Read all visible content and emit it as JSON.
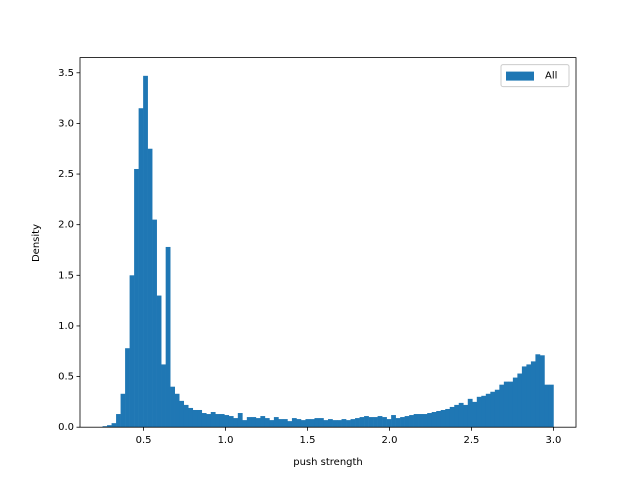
{
  "chart_data": {
    "type": "histogram",
    "xlabel": "push strength",
    "ylabel": "Density",
    "bins": [
      0.25,
      0.2775,
      0.305,
      0.3325,
      0.36,
      0.3875,
      0.415,
      0.4425,
      0.47,
      0.4975,
      0.525,
      0.5525,
      0.58,
      0.6075,
      0.635,
      0.6625,
      0.69,
      0.7175,
      0.745,
      0.7725,
      0.8,
      0.8275,
      0.855,
      0.8825,
      0.91,
      0.9375,
      0.965,
      0.9925,
      1.02,
      1.0475,
      1.075,
      1.1025,
      1.13,
      1.1575,
      1.185,
      1.2125,
      1.24,
      1.2675,
      1.295,
      1.3225,
      1.35,
      1.3775,
      1.405,
      1.4325,
      1.46,
      1.4875,
      1.515,
      1.5425,
      1.57,
      1.5975,
      1.625,
      1.6525,
      1.68,
      1.7075,
      1.735,
      1.7625,
      1.79,
      1.8175,
      1.845,
      1.8725,
      1.9,
      1.9275,
      1.955,
      1.9825,
      2.01,
      2.0375,
      2.065,
      2.0925,
      2.12,
      2.1475,
      2.175,
      2.2025,
      2.23,
      2.2575,
      2.285,
      2.3125,
      2.34,
      2.3675,
      2.395,
      2.4225,
      2.45,
      2.4775,
      2.505,
      2.5325,
      2.56,
      2.5875,
      2.615,
      2.6425,
      2.67,
      2.6975,
      2.725,
      2.7525,
      2.78,
      2.8075,
      2.835,
      2.8625,
      2.89,
      2.9175,
      2.945,
      2.9725,
      3.0
    ],
    "series": [
      {
        "name": "All",
        "color": "#1f77b4",
        "values": [
          0.01,
          0.02,
          0.04,
          0.13,
          0.33,
          0.78,
          1.5,
          2.55,
          3.15,
          3.47,
          2.75,
          2.05,
          1.3,
          0.62,
          1.78,
          0.4,
          0.33,
          0.26,
          0.22,
          0.19,
          0.17,
          0.17,
          0.14,
          0.13,
          0.15,
          0.13,
          0.13,
          0.12,
          0.11,
          0.09,
          0.14,
          0.07,
          0.1,
          0.1,
          0.09,
          0.11,
          0.09,
          0.07,
          0.1,
          0.08,
          0.08,
          0.06,
          0.09,
          0.08,
          0.07,
          0.08,
          0.08,
          0.09,
          0.09,
          0.07,
          0.08,
          0.07,
          0.07,
          0.08,
          0.07,
          0.08,
          0.09,
          0.1,
          0.11,
          0.1,
          0.1,
          0.11,
          0.1,
          0.08,
          0.12,
          0.09,
          0.1,
          0.11,
          0.12,
          0.13,
          0.13,
          0.13,
          0.14,
          0.15,
          0.16,
          0.17,
          0.18,
          0.2,
          0.22,
          0.24,
          0.22,
          0.28,
          0.25,
          0.3,
          0.31,
          0.33,
          0.35,
          0.37,
          0.42,
          0.45,
          0.45,
          0.49,
          0.53,
          0.6,
          0.62,
          0.65,
          0.72,
          0.71,
          0.42,
          0.42
        ]
      }
    ],
    "xlim": [
      0.1125,
      3.1375
    ],
    "xticks": [
      0.5,
      {
        "value": 1,
        "label": "1.0"
      },
      1.5,
      {
        "value": 2,
        "label": "2.0"
      },
      2.5,
      {
        "value": 3,
        "label": "3.0"
      }
    ],
    "ylim": [
      0,
      3.65
    ],
    "yticks": [
      {
        "value": 0,
        "label": "0.0"
      },
      0.5,
      {
        "value": 1,
        "label": "1.0"
      },
      1.5,
      {
        "value": 2,
        "label": "2.0"
      },
      2.5,
      {
        "value": 3,
        "label": "3.0"
      },
      3.5
    ],
    "legend": "upper right"
  }
}
